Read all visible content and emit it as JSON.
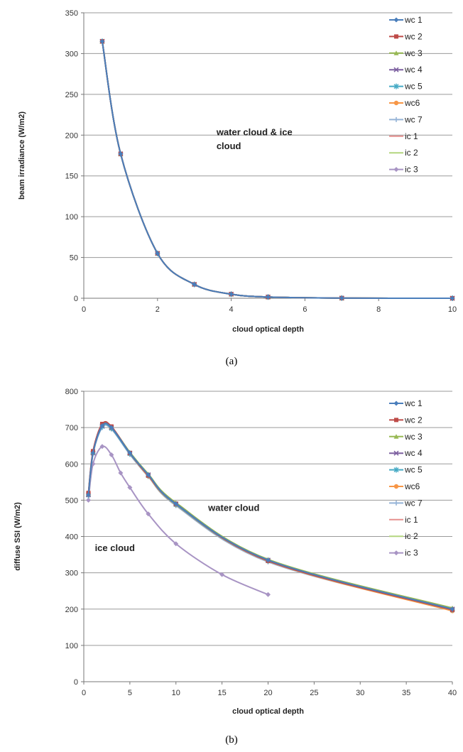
{
  "chart_data": [
    {
      "type": "line",
      "caption": "(a)",
      "xlabel": "cloud optical depth",
      "ylabel": "beam irradiance (W/m2)",
      "xlim": [
        0,
        10
      ],
      "ylim": [
        0,
        350
      ],
      "xticks": [
        0,
        2,
        4,
        6,
        8,
        10
      ],
      "yticks": [
        0,
        50,
        100,
        150,
        200,
        250,
        300,
        350
      ],
      "grid": "horizontal",
      "legend_position": "right",
      "annotations": [
        {
          "text": "water cloud & ice",
          "x": 3.6,
          "y": 200
        },
        {
          "text": "cloud",
          "x": 3.6,
          "y": 183
        }
      ],
      "series": [
        {
          "name": "wc 1",
          "color": "#4a7ebb",
          "marker": "diamond",
          "x": [
            0.5,
            1,
            2,
            3,
            4,
            5,
            7,
            10
          ],
          "values": [
            315,
            177,
            55,
            17,
            5,
            1.5,
            0.2,
            0
          ]
        },
        {
          "name": "wc 2",
          "color": "#be4b48",
          "marker": "square",
          "x": [
            0.5,
            1,
            2,
            3,
            4,
            5,
            7,
            10
          ],
          "values": [
            315,
            177,
            55,
            17,
            5,
            1.5,
            0.2,
            0
          ]
        },
        {
          "name": "wc 3",
          "color": "#98b954",
          "marker": "triangle",
          "x": [
            0.5,
            1,
            2,
            3,
            4,
            5,
            7,
            10
          ],
          "values": [
            315,
            177,
            55,
            17,
            5,
            1.5,
            0.2,
            0
          ]
        },
        {
          "name": "wc 4",
          "color": "#7d60a0",
          "marker": "x",
          "x": [
            0.5,
            1,
            2,
            3,
            4,
            5,
            7,
            10
          ],
          "values": [
            315,
            177,
            55,
            17,
            5,
            1.5,
            0.2,
            0
          ]
        },
        {
          "name": "wc 5",
          "color": "#46aac5",
          "marker": "star",
          "x": [
            0.5,
            1,
            2,
            3,
            4,
            5,
            7,
            10
          ],
          "values": [
            315,
            177,
            55,
            17,
            5,
            1.5,
            0.2,
            0
          ]
        },
        {
          "name": "wc6",
          "color": "#f79646",
          "marker": "circle",
          "x": [
            0.5,
            1,
            2,
            3,
            4,
            5,
            7,
            10
          ],
          "values": [
            315,
            177,
            55,
            17,
            5,
            1.5,
            0.2,
            0
          ]
        },
        {
          "name": "wc 7",
          "color": "#95b3d7",
          "marker": "plus",
          "x": [
            0.5,
            1,
            2,
            3,
            4,
            5,
            7,
            10
          ],
          "values": [
            315,
            177,
            55,
            17,
            5,
            1.5,
            0.2,
            0
          ]
        },
        {
          "name": "ic 1",
          "color": "#e6908e",
          "marker": "none",
          "x": [
            0.5,
            1,
            2,
            3,
            4,
            5,
            7,
            10
          ],
          "values": [
            315,
            177,
            55,
            17,
            5,
            1.5,
            0.2,
            0
          ]
        },
        {
          "name": "ic 2",
          "color": "#b3d67f",
          "marker": "none",
          "x": [
            0.5,
            1,
            2,
            3,
            4,
            5,
            7,
            10
          ],
          "values": [
            315,
            177,
            55,
            17,
            5,
            1.5,
            0.2,
            0
          ]
        },
        {
          "name": "ic 3",
          "color": "#a894c4",
          "marker": "diamond",
          "x": [
            0.5,
            1,
            2,
            3,
            4,
            5,
            7,
            10
          ],
          "values": [
            315,
            177,
            55,
            17,
            5,
            1.5,
            0.2,
            0
          ]
        }
      ]
    },
    {
      "type": "line",
      "caption": "(b)",
      "xlabel": "cloud optical depth",
      "ylabel": "diffuse SSI (W/m2)",
      "xlim": [
        0,
        40
      ],
      "ylim": [
        0,
        800
      ],
      "xticks": [
        0,
        5,
        10,
        15,
        20,
        25,
        30,
        35,
        40
      ],
      "yticks": [
        0,
        100,
        200,
        300,
        400,
        500,
        600,
        700,
        800
      ],
      "grid": "horizontal",
      "legend_position": "right",
      "annotations": [
        {
          "text": "water cloud",
          "x": 13.5,
          "y": 470
        },
        {
          "text": "ice cloud",
          "x": 1.2,
          "y": 360
        }
      ],
      "series": [
        {
          "name": "wc 1",
          "color": "#4a7ebb",
          "marker": "diamond",
          "x": [
            0.5,
            1,
            2,
            3,
            5,
            7,
            10,
            20,
            40
          ],
          "values": [
            515,
            630,
            705,
            700,
            630,
            570,
            490,
            335,
            200
          ]
        },
        {
          "name": "wc 2",
          "color": "#be4b48",
          "marker": "square",
          "x": [
            0.5,
            1,
            2,
            3,
            5,
            7,
            10,
            20,
            40
          ],
          "values": [
            520,
            635,
            710,
            703,
            630,
            568,
            490,
            333,
            198
          ]
        },
        {
          "name": "wc 3",
          "color": "#98b954",
          "marker": "triangle",
          "x": [
            0.5,
            1,
            2,
            3,
            5,
            7,
            10,
            20,
            40
          ],
          "values": [
            518,
            632,
            708,
            702,
            632,
            572,
            493,
            337,
            203
          ]
        },
        {
          "name": "wc 4",
          "color": "#7d60a0",
          "marker": "x",
          "x": [
            0.5,
            1,
            2,
            3,
            5,
            7,
            10,
            20,
            40
          ],
          "values": [
            515,
            630,
            705,
            700,
            630,
            570,
            490,
            335,
            200
          ]
        },
        {
          "name": "wc 5",
          "color": "#46aac5",
          "marker": "star",
          "x": [
            0.5,
            1,
            2,
            3,
            5,
            7,
            10,
            20,
            40
          ],
          "values": [
            515,
            630,
            703,
            698,
            628,
            568,
            488,
            333,
            198
          ]
        },
        {
          "name": "wc6",
          "color": "#f79646",
          "marker": "circle",
          "x": [
            0.5,
            1,
            2,
            3,
            5,
            7,
            10,
            20,
            40
          ],
          "values": [
            515,
            632,
            705,
            698,
            628,
            566,
            487,
            332,
            195
          ]
        },
        {
          "name": "wc 7",
          "color": "#95b3d7",
          "marker": "plus",
          "x": [
            0.5,
            1,
            2,
            3,
            5,
            7,
            10,
            20,
            40
          ],
          "values": [
            510,
            628,
            700,
            696,
            626,
            565,
            485,
            330,
            197
          ]
        },
        {
          "name": "ic 1",
          "color": "#e6908e",
          "marker": "none",
          "x": [
            0.5,
            1,
            2,
            3,
            5,
            7,
            10,
            20,
            40
          ],
          "values": [
            512,
            630,
            704,
            699,
            629,
            567,
            489,
            334,
            198
          ]
        },
        {
          "name": "ic 2",
          "color": "#b3d67f",
          "marker": "none",
          "x": [
            0.5,
            1,
            2,
            3,
            5,
            7,
            10,
            20,
            40
          ],
          "values": [
            512,
            628,
            702,
            697,
            627,
            566,
            488,
            333,
            199
          ]
        },
        {
          "name": "ic 3",
          "color": "#a894c4",
          "marker": "diamond",
          "x": [
            0.5,
            1,
            2,
            3,
            4,
            5,
            7,
            10,
            15,
            20
          ],
          "values": [
            500,
            600,
            648,
            625,
            575,
            535,
            462,
            380,
            295,
            240
          ]
        }
      ]
    }
  ]
}
